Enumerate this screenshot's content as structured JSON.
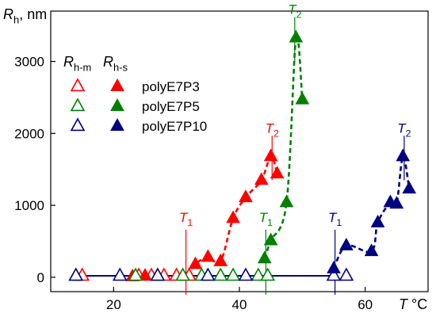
{
  "chart_data": {
    "type": "scatter",
    "ylabel": {
      "main": "R",
      "sub": "h",
      "rest": ", nm"
    },
    "xlabel": {
      "main": "T",
      "rest": " °C"
    },
    "xlim": [
      10,
      70
    ],
    "ylim": [
      -200,
      3700
    ],
    "xticks": [
      20,
      40,
      60
    ],
    "yticks": [
      0,
      1000,
      2000,
      3000
    ],
    "legend": {
      "position": "top-left",
      "col_m": {
        "main": "R",
        "sub": "h-m"
      },
      "col_s": {
        "main": "R",
        "sub": "h-s"
      }
    },
    "series": [
      {
        "name": "polyE7P3",
        "color": "#ff0000",
        "rhm": [
          [
            15,
            20
          ],
          [
            24,
            20
          ],
          [
            26,
            20
          ],
          [
            28,
            20
          ],
          [
            30,
            20
          ],
          [
            32,
            20
          ]
        ],
        "rhs": [
          [
            23,
            10
          ],
          [
            25,
            20
          ],
          [
            31,
            20
          ],
          [
            33,
            180
          ],
          [
            35,
            280
          ],
          [
            37,
            220
          ],
          [
            39,
            820
          ],
          [
            41,
            1110
          ],
          [
            43.5,
            1350
          ],
          [
            45,
            1680
          ],
          [
            46,
            1440
          ]
        ],
        "curve": [
          [
            32,
            20
          ],
          [
            33,
            180
          ],
          [
            35,
            280
          ],
          [
            37,
            220
          ],
          [
            39,
            820
          ],
          [
            41,
            1110
          ],
          [
            43.5,
            1350
          ],
          [
            45,
            1680
          ],
          [
            46,
            1440
          ]
        ],
        "T1": {
          "label": "T",
          "sub": "1",
          "x": 31.5
        },
        "T2": {
          "label": "T",
          "sub": "2",
          "x": 45.2,
          "y": 1680
        }
      },
      {
        "name": "polyE7P5",
        "color": "#008000",
        "rhm": [
          [
            14,
            20
          ],
          [
            23.5,
            20
          ],
          [
            27,
            20
          ],
          [
            31,
            20
          ],
          [
            34,
            20
          ],
          [
            37,
            20
          ],
          [
            39,
            20
          ],
          [
            43,
            20
          ],
          [
            44.5,
            20
          ]
        ],
        "rhs": [
          [
            44,
            260
          ],
          [
            45,
            510
          ],
          [
            47.5,
            1040
          ],
          [
            49,
            3330
          ],
          [
            50,
            2470
          ]
        ],
        "curve": [
          [
            44,
            260
          ],
          [
            45,
            510
          ],
          [
            47.5,
            1040
          ],
          [
            49,
            3330
          ],
          [
            50,
            2470
          ]
        ],
        "T1": {
          "label": "T",
          "sub": "1",
          "x": 44.2
        },
        "T2": {
          "label": "T",
          "sub": "2",
          "x": 48.8,
          "y": 3330
        }
      },
      {
        "name": "polyE7P10",
        "color": "#000080",
        "rhm": [
          [
            14,
            20
          ],
          [
            21,
            20
          ],
          [
            27,
            20
          ],
          [
            35,
            20
          ],
          [
            41,
            20
          ],
          [
            55,
            20
          ],
          [
            57,
            20
          ]
        ],
        "rhs": [
          [
            55,
            120
          ],
          [
            57,
            440
          ],
          [
            61,
            360
          ],
          [
            62,
            760
          ],
          [
            64,
            1040
          ],
          [
            65,
            1020
          ],
          [
            66,
            1680
          ],
          [
            67,
            1230
          ]
        ],
        "curve": [
          [
            55,
            120
          ],
          [
            57,
            440
          ],
          [
            61,
            360
          ],
          [
            62,
            760
          ],
          [
            64,
            1040
          ],
          [
            65,
            1020
          ],
          [
            66,
            1680
          ],
          [
            67,
            1230
          ]
        ],
        "baseline": [
          [
            14,
            20
          ],
          [
            55,
            20
          ]
        ],
        "T1": {
          "label": "T",
          "sub": "1",
          "x": 55.2
        },
        "T2": {
          "label": "T",
          "sub": "2",
          "x": 66.2,
          "y": 1680
        }
      }
    ]
  }
}
